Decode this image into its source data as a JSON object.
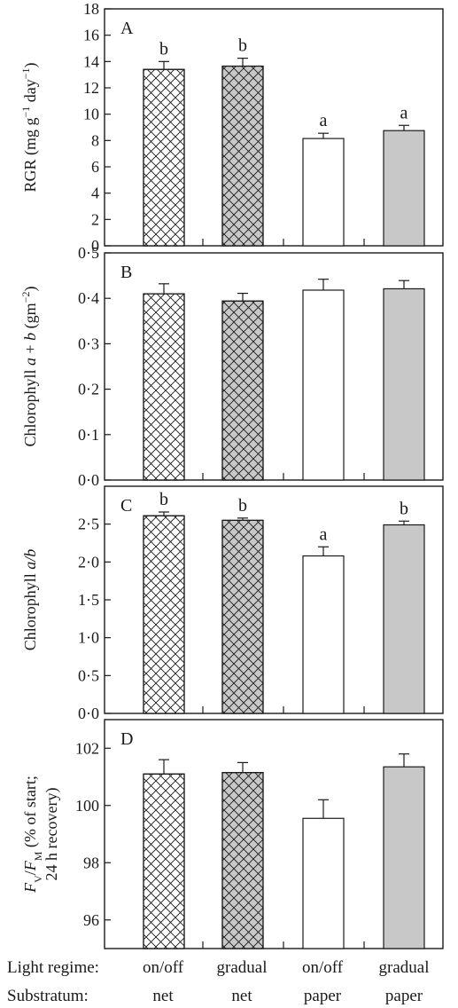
{
  "chart_data": [
    {
      "type": "bar",
      "panel_label": "A",
      "ylabel_parts": [
        "RGR (mg g",
        "−1",
        " day",
        "−1",
        ")"
      ],
      "ylim": [
        0,
        18
      ],
      "yticks": [
        0,
        2,
        4,
        6,
        8,
        10,
        12,
        14,
        16,
        18
      ],
      "ytick_labels": [
        "0",
        "2",
        "4",
        "6",
        "8",
        "10",
        "12",
        "14",
        "16",
        "18"
      ],
      "values": [
        13.4,
        13.65,
        8.15,
        8.75
      ],
      "errors": [
        0.6,
        0.6,
        0.4,
        0.4
      ],
      "sig_letters": [
        "b",
        "b",
        "a",
        "a"
      ]
    },
    {
      "type": "bar",
      "panel_label": "B",
      "ylabel_parts": [
        "Chlorophyll ",
        "a",
        " + ",
        "b",
        " (gm",
        "−2",
        ")"
      ],
      "ylim": [
        0,
        0.5
      ],
      "yticks": [
        0,
        0.1,
        0.2,
        0.3,
        0.4,
        0.5
      ],
      "ytick_labels": [
        "0·0",
        "0·1",
        "0·2",
        "0·3",
        "0·4",
        "0·5"
      ],
      "values": [
        0.41,
        0.394,
        0.418,
        0.421
      ],
      "errors": [
        0.022,
        0.017,
        0.024,
        0.018
      ],
      "sig_letters": [
        "",
        "",
        "",
        ""
      ]
    },
    {
      "type": "bar",
      "panel_label": "C",
      "ylabel_parts": [
        "Chlorophyll ",
        "a/b"
      ],
      "ylim": [
        0,
        3
      ],
      "yticks": [
        0,
        0.5,
        1.0,
        1.5,
        2.0,
        2.5
      ],
      "ytick_labels": [
        "0·0",
        "0·5",
        "1·0",
        "1·5",
        "2·0",
        "2·5"
      ],
      "values": [
        2.61,
        2.55,
        2.08,
        2.49
      ],
      "errors": [
        0.05,
        0.03,
        0.12,
        0.05
      ],
      "sig_letters": [
        "b",
        "b",
        "a",
        "b"
      ]
    },
    {
      "type": "bar",
      "panel_label": "D",
      "ylabel_line1_parts": [
        "F",
        "V",
        "/",
        "F",
        "M",
        " (% of start;"
      ],
      "ylabel_line2": "24 h recovery)",
      "ylim": [
        95,
        103
      ],
      "yticks": [
        96,
        98,
        100,
        102
      ],
      "ytick_labels": [
        "96",
        "98",
        "100",
        "102"
      ],
      "values": [
        101.1,
        101.15,
        99.55,
        101.35
      ],
      "errors": [
        0.5,
        0.35,
        0.65,
        0.45
      ],
      "sig_letters": [
        "",
        "",
        "",
        ""
      ]
    }
  ],
  "bar_styles": [
    {
      "fill": "#ffffff",
      "hatch": true
    },
    {
      "fill": "#c8c8c8",
      "hatch": true
    },
    {
      "fill": "#ffffff",
      "hatch": false
    },
    {
      "fill": "#c8c8c8",
      "hatch": false
    }
  ],
  "categories": {
    "light_regime_label": "Light regime:",
    "substratum_label": "Substratum:",
    "light_regime": [
      "on/off",
      "gradual",
      "on/off",
      "gradual"
    ],
    "substratum": [
      "net",
      "net",
      "paper",
      "paper"
    ]
  }
}
